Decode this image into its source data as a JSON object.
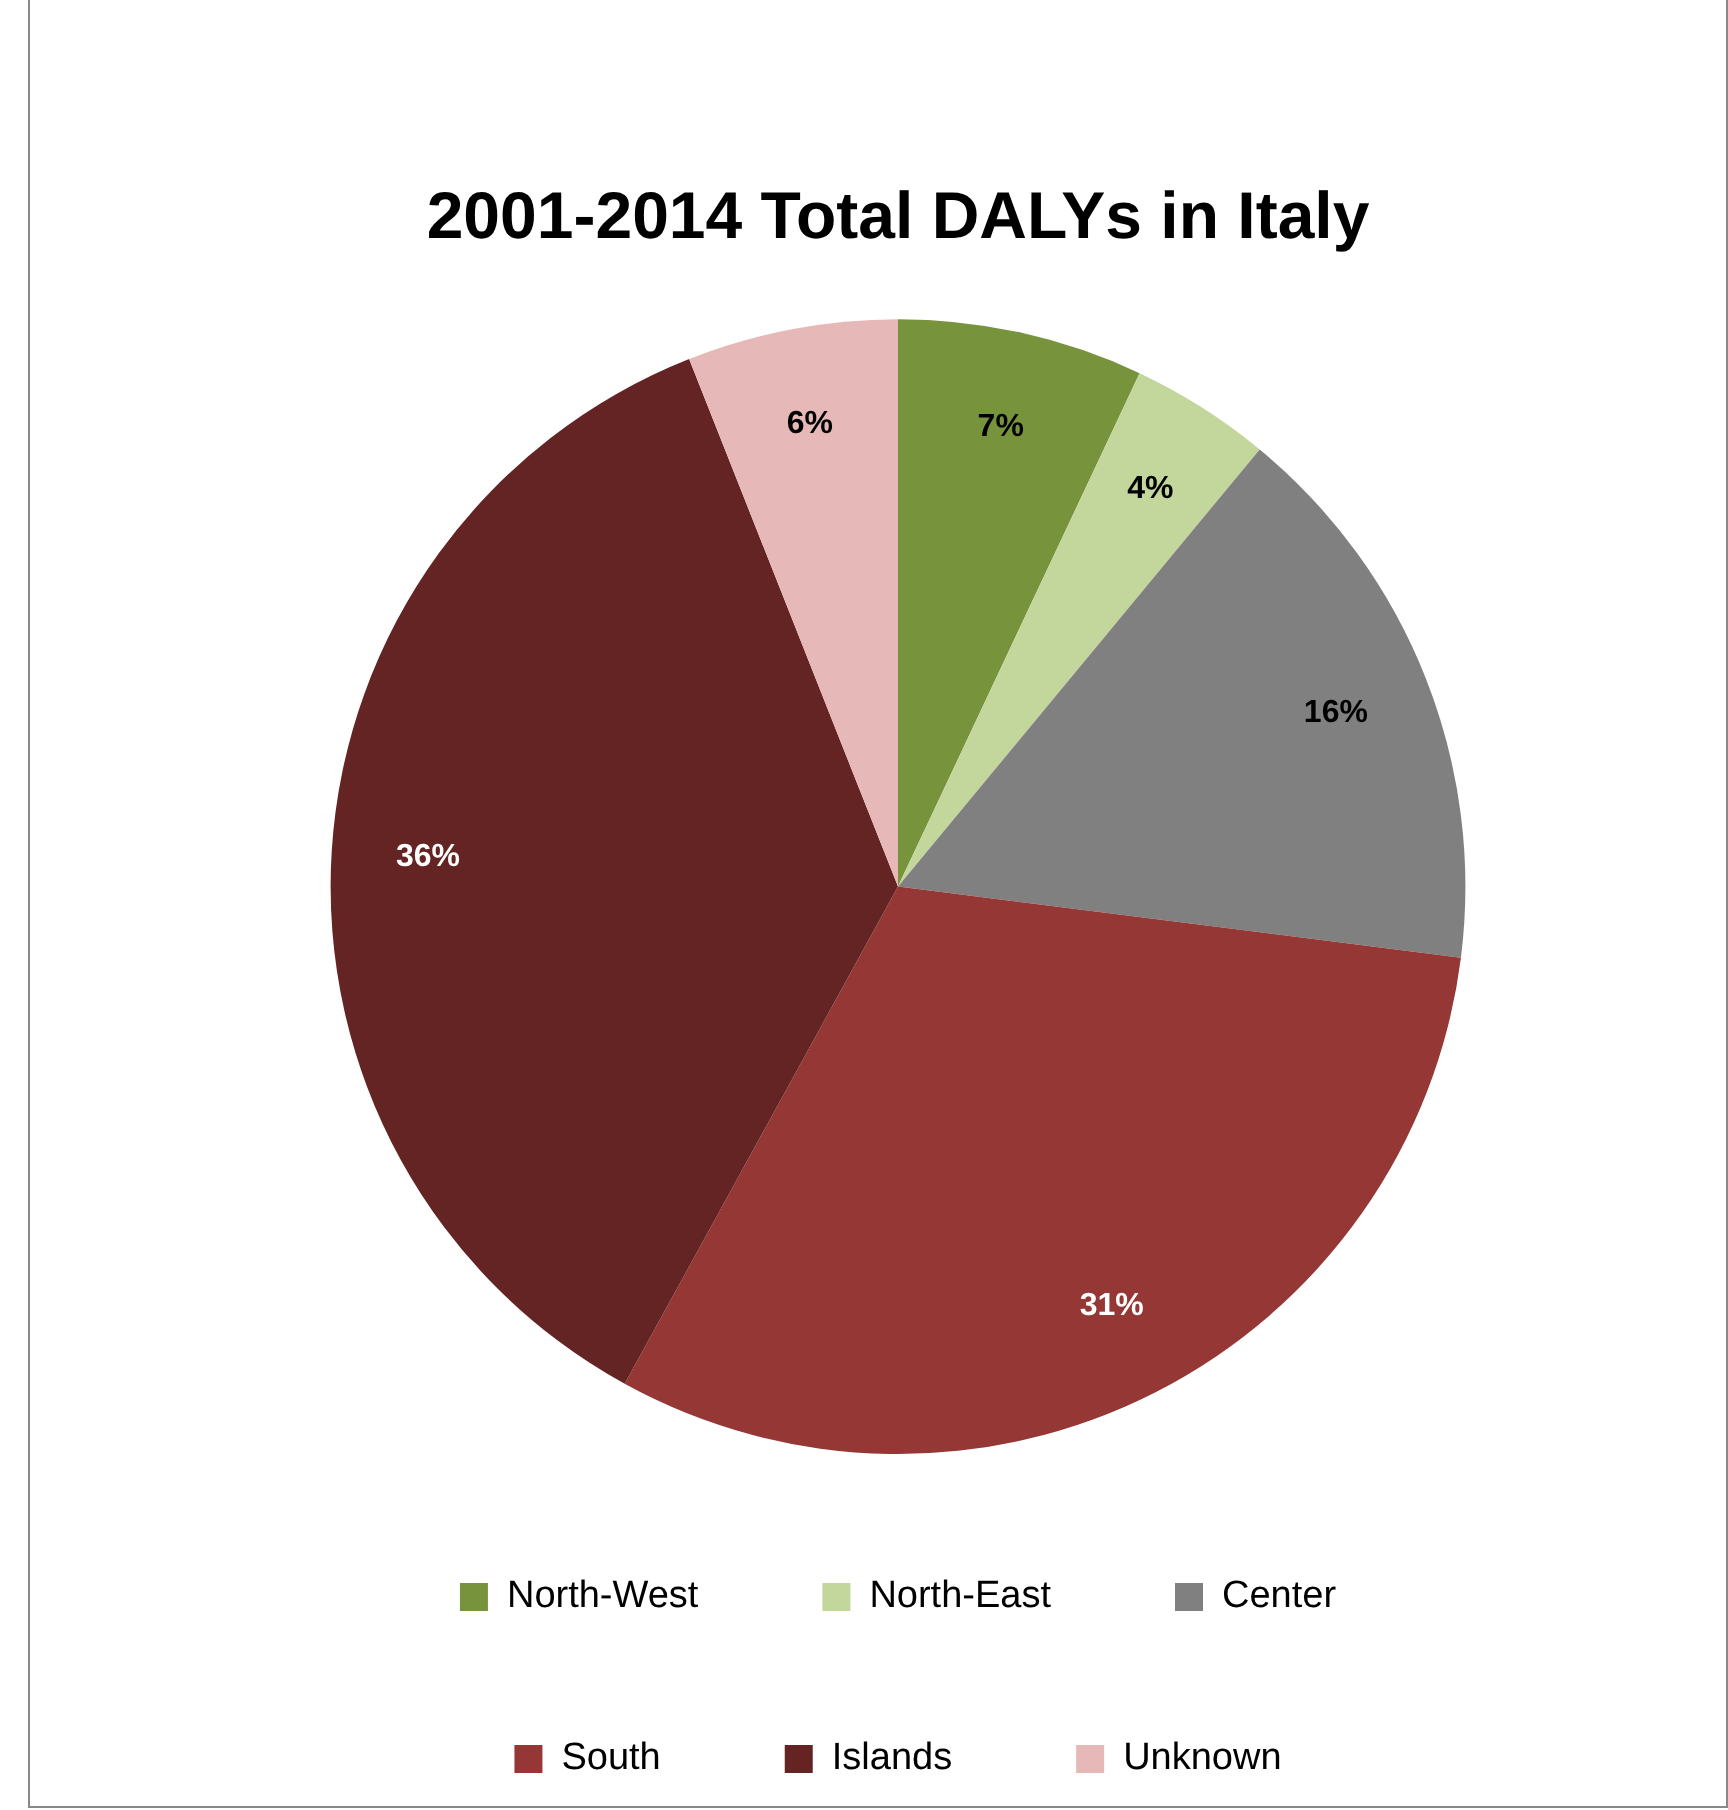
{
  "chart_data": {
    "type": "pie",
    "title": "2001-2014 Total DALYs in Italy",
    "categories": [
      "North-West",
      "North-East",
      "Center",
      "South",
      "Islands",
      "Unknown"
    ],
    "values": [
      7,
      4,
      16,
      31,
      36,
      6
    ],
    "colors": [
      "#77933c",
      "#c3d69b",
      "#808080",
      "#953735",
      "#632423",
      "#e6b9b8"
    ],
    "value_labels": [
      "7%",
      "4%",
      "16%",
      "31%",
      "36%",
      "6%"
    ],
    "legend": "bottom"
  }
}
